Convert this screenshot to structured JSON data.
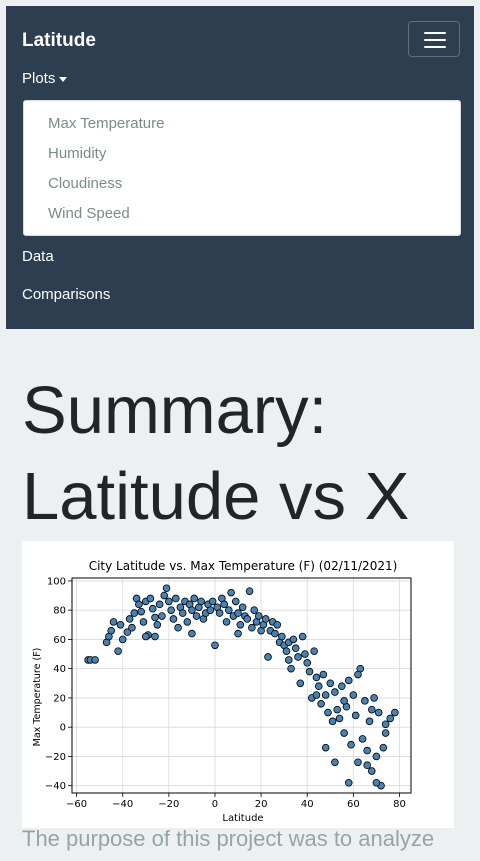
{
  "navbar": {
    "brand": "Latitude",
    "menu_icon": "hamburger-icon",
    "plots_label": "Plots",
    "dropdown_items": [
      "Max Temperature",
      "Humidity",
      "Cloudiness",
      "Wind Speed"
    ],
    "data_label": "Data",
    "comparisons_label": "Comparisons"
  },
  "main": {
    "title_line1": "Summary:",
    "title_line2": "Latitude vs X",
    "lead": "The purpose of this project was to analyze"
  },
  "colors": {
    "navbar": "#2c3e50",
    "background": "#ecf0f1",
    "point_fill": "#4682b4",
    "point_edge": "#000000",
    "dropdown_text": "#7b8a8b"
  },
  "chart_data": {
    "type": "scatter",
    "title": "City Latitude vs. Max Temperature (F) (02/11/2021)",
    "xlabel": "Latitude",
    "ylabel": "Max Temperature (F)",
    "xlim": [
      -62,
      85
    ],
    "ylim": [
      -45,
      102
    ],
    "xticks": [
      -60,
      -40,
      -20,
      0,
      20,
      40,
      60,
      80
    ],
    "yticks": [
      -40,
      -20,
      0,
      20,
      40,
      60,
      80,
      100
    ],
    "grid": true,
    "points": [
      [
        -55,
        46
      ],
      [
        -54,
        46
      ],
      [
        -52,
        46
      ],
      [
        -47,
        58
      ],
      [
        -46,
        62
      ],
      [
        -45,
        66
      ],
      [
        -44,
        72
      ],
      [
        -42,
        52
      ],
      [
        -41,
        70
      ],
      [
        -40,
        60
      ],
      [
        -38,
        65
      ],
      [
        -37,
        74
      ],
      [
        -36,
        68
      ],
      [
        -35,
        78
      ],
      [
        -34,
        88
      ],
      [
        -33,
        84
      ],
      [
        -32,
        79
      ],
      [
        -31,
        72
      ],
      [
        -30,
        86
      ],
      [
        -29,
        63
      ],
      [
        -28,
        88
      ],
      [
        -27,
        81
      ],
      [
        -26,
        75
      ],
      [
        -25,
        70
      ],
      [
        -24,
        84
      ],
      [
        -23,
        76
      ],
      [
        -22,
        90
      ],
      [
        -21,
        95
      ],
      [
        -20,
        86
      ],
      [
        -19,
        80
      ],
      [
        -18,
        74
      ],
      [
        -17,
        88
      ],
      [
        -16,
        68
      ],
      [
        -15,
        82
      ],
      [
        -14,
        78
      ],
      [
        -13,
        86
      ],
      [
        -12,
        72
      ],
      [
        -11,
        84
      ],
      [
        -10,
        80
      ],
      [
        -9,
        88
      ],
      [
        -8,
        76
      ],
      [
        -7,
        82
      ],
      [
        -6,
        86
      ],
      [
        -5,
        74
      ],
      [
        -4,
        78
      ],
      [
        -3,
        84
      ],
      [
        -2,
        80
      ],
      [
        -1,
        86
      ],
      [
        0,
        56
      ],
      [
        1,
        82
      ],
      [
        2,
        78
      ],
      [
        3,
        88
      ],
      [
        4,
        84
      ],
      [
        5,
        72
      ],
      [
        6,
        80
      ],
      [
        7,
        92
      ],
      [
        8,
        76
      ],
      [
        9,
        86
      ],
      [
        10,
        78
      ],
      [
        11,
        70
      ],
      [
        12,
        82
      ],
      [
        13,
        76
      ],
      [
        14,
        74
      ],
      [
        15,
        93
      ],
      [
        16,
        68
      ],
      [
        17,
        80
      ],
      [
        18,
        72
      ],
      [
        19,
        76
      ],
      [
        20,
        66
      ],
      [
        21,
        70
      ],
      [
        22,
        74
      ],
      [
        23,
        48
      ],
      [
        24,
        66
      ],
      [
        25,
        72
      ],
      [
        26,
        64
      ],
      [
        27,
        70
      ],
      [
        28,
        58
      ],
      [
        29,
        62
      ],
      [
        30,
        56
      ],
      [
        31,
        52
      ],
      [
        32,
        58
      ],
      [
        33,
        40
      ],
      [
        34,
        60
      ],
      [
        35,
        54
      ],
      [
        36,
        48
      ],
      [
        37,
        30
      ],
      [
        38,
        62
      ],
      [
        39,
        50
      ],
      [
        40,
        44
      ],
      [
        41,
        38
      ],
      [
        42,
        20
      ],
      [
        43,
        52
      ],
      [
        44,
        34
      ],
      [
        45,
        28
      ],
      [
        46,
        16
      ],
      [
        47,
        36
      ],
      [
        48,
        22
      ],
      [
        49,
        10
      ],
      [
        50,
        30
      ],
      [
        51,
        4
      ],
      [
        52,
        24
      ],
      [
        53,
        12
      ],
      [
        54,
        6
      ],
      [
        55,
        28
      ],
      [
        56,
        -4
      ],
      [
        57,
        14
      ],
      [
        58,
        32
      ],
      [
        59,
        -12
      ],
      [
        60,
        22
      ],
      [
        61,
        8
      ],
      [
        62,
        -24
      ],
      [
        63,
        40
      ],
      [
        64,
        -8
      ],
      [
        65,
        18
      ],
      [
        66,
        -16
      ],
      [
        67,
        4
      ],
      [
        68,
        -30
      ],
      [
        69,
        20
      ],
      [
        70,
        -20
      ],
      [
        71,
        10
      ],
      [
        72,
        -40
      ],
      [
        73,
        -14
      ],
      [
        74,
        2
      ],
      [
        76,
        6
      ],
      [
        78,
        10
      ],
      [
        48,
        -14
      ],
      [
        52,
        -24
      ],
      [
        58,
        -38
      ],
      [
        66,
        -26
      ],
      [
        70,
        -38
      ],
      [
        -30,
        62
      ],
      [
        -26,
        62
      ],
      [
        -10,
        64
      ],
      [
        10,
        64
      ],
      [
        32,
        46
      ],
      [
        44,
        22
      ],
      [
        56,
        18
      ],
      [
        62,
        36
      ],
      [
        68,
        12
      ],
      [
        74,
        -4
      ]
    ]
  }
}
